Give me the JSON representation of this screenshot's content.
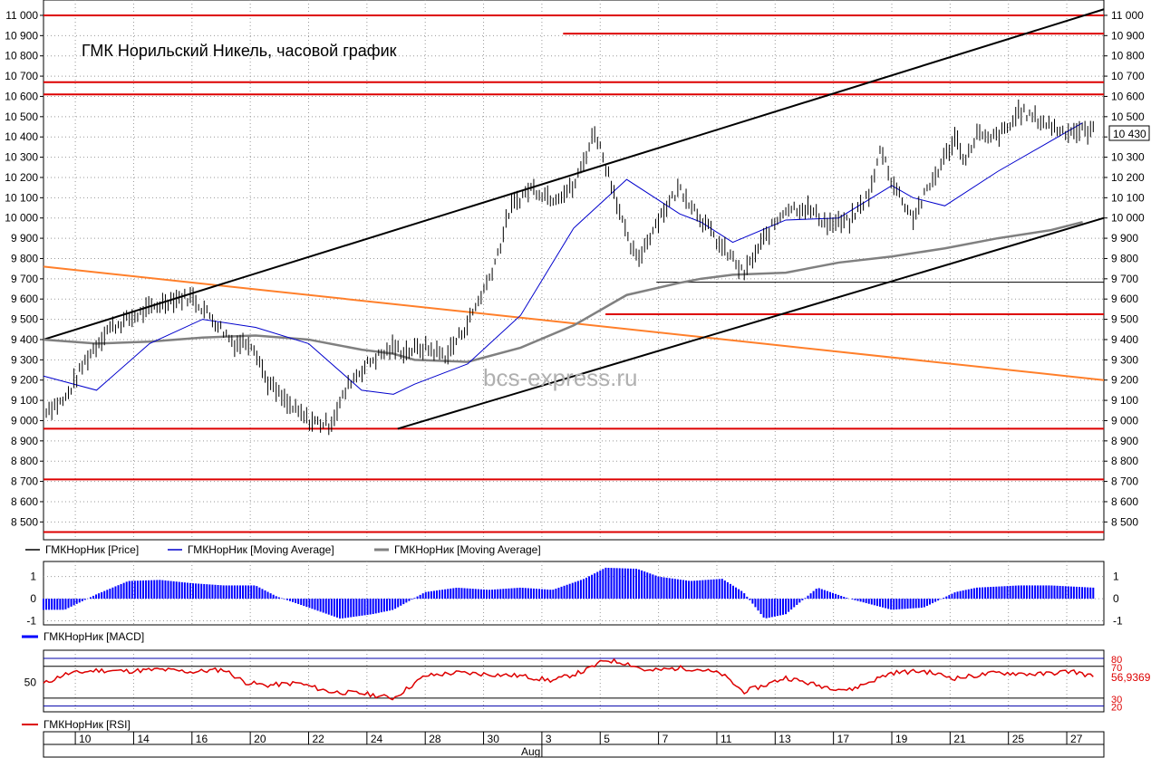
{
  "title": "ГМК Норильский Никель, часовой график",
  "watermark": "bcs-express.ru",
  "colors": {
    "price": "#000000",
    "ma_fast": "#0000cc",
    "ma_slow": "#808080",
    "level": "#dd0000",
    "trend_orange": "#ff7f2a",
    "macd": "#0000ff",
    "rsi": "#dd0000"
  },
  "price_panel": {
    "ylim": [
      8430,
      11040
    ],
    "y_ticks": [
      8500,
      8600,
      8700,
      8800,
      8900,
      9000,
      9100,
      9200,
      9300,
      9400,
      9500,
      9600,
      9700,
      9800,
      9900,
      10000,
      10100,
      10200,
      10300,
      10400,
      10500,
      10600,
      10700,
      10800,
      10900,
      11000
    ],
    "y_tick_labels": [
      "8 500",
      "8 600",
      "8 700",
      "8 800",
      "8 900",
      "9 000",
      "9 100",
      "9 200",
      "9 300",
      "9 400",
      "9 500",
      "9 600",
      "9 700",
      "9 800",
      "9 900",
      "10 000",
      "10 100",
      "10 200",
      "10 300",
      "10 400",
      "10 500",
      "10 600",
      "10 700",
      "10 800",
      "10 900",
      "11 000"
    ],
    "last_price_label": "10 430",
    "levels": [
      {
        "y": 11000,
        "from": 0.0,
        "to": 1.0
      },
      {
        "y": 10910,
        "from": 0.49,
        "to": 1.0
      },
      {
        "y": 10670,
        "from": 0.0,
        "to": 1.0
      },
      {
        "y": 10610,
        "from": 0.0,
        "to": 1.0
      },
      {
        "y": 9525,
        "from": 0.53,
        "to": 1.0
      },
      {
        "y": 8960,
        "from": 0.0,
        "to": 1.0
      },
      {
        "y": 8710,
        "from": 0.0,
        "to": 1.0
      },
      {
        "y": 8450,
        "from": 0.0,
        "to": 1.0
      }
    ],
    "support_line": {
      "y": 9683,
      "from": 0.578,
      "to": 1.0
    },
    "channel_upper": {
      "x": [
        0,
        1
      ],
      "y": [
        9400,
        11030
      ]
    },
    "channel_lower": {
      "x": [
        0.334,
        1
      ],
      "y": [
        8960,
        10000
      ]
    },
    "trend_orange": {
      "x": [
        0,
        1
      ],
      "y": [
        9760,
        9200
      ]
    },
    "price_path": {
      "x": [
        0,
        0.02,
        0.04,
        0.06,
        0.08,
        0.1,
        0.12,
        0.14,
        0.16,
        0.18,
        0.195,
        0.2,
        0.21,
        0.23,
        0.25,
        0.27,
        0.29,
        0.31,
        0.33,
        0.34,
        0.36,
        0.38,
        0.4,
        0.42,
        0.43,
        0.44,
        0.46,
        0.48,
        0.5,
        0.52,
        0.54,
        0.55,
        0.56,
        0.58,
        0.6,
        0.62,
        0.64,
        0.65,
        0.66,
        0.68,
        0.7,
        0.72,
        0.74,
        0.76,
        0.78,
        0.79,
        0.8,
        0.82,
        0.84,
        0.86,
        0.87,
        0.88,
        0.89,
        0.9,
        0.91,
        0.92,
        0.94,
        0.96,
        0.98,
        0.99
      ],
      "y": [
        9050,
        9100,
        9300,
        9450,
        9500,
        9550,
        9600,
        9610,
        9500,
        9380,
        9390,
        9350,
        9200,
        9080,
        9000,
        8980,
        9200,
        9300,
        9360,
        9340,
        9360,
        9320,
        9480,
        9700,
        9850,
        10050,
        10150,
        10100,
        10150,
        10430,
        10100,
        9900,
        9790,
        10000,
        10150,
        10000,
        9850,
        9800,
        9720,
        9900,
        10050,
        10050,
        9970,
        9980,
        10130,
        10350,
        10180,
        10000,
        10200,
        10400,
        10280,
        10420,
        10380,
        10410,
        10440,
        10530,
        10480,
        10430,
        10430,
        10430
      ]
    },
    "ma_fast_path": {
      "x": [
        0,
        0.05,
        0.1,
        0.15,
        0.2,
        0.25,
        0.3,
        0.33,
        0.35,
        0.4,
        0.45,
        0.5,
        0.55,
        0.6,
        0.62,
        0.65,
        0.7,
        0.75,
        0.8,
        0.82,
        0.85,
        0.9,
        0.95,
        0.98
      ],
      "y": [
        9220,
        9150,
        9380,
        9500,
        9460,
        9380,
        9150,
        9130,
        9180,
        9280,
        9520,
        9950,
        10190,
        10020,
        9980,
        9880,
        9990,
        10000,
        10160,
        10100,
        10060,
        10230,
        10380,
        10470
      ]
    },
    "ma_slow_path": {
      "x": [
        0,
        0.05,
        0.1,
        0.15,
        0.2,
        0.25,
        0.3,
        0.33,
        0.35,
        0.4,
        0.45,
        0.5,
        0.55,
        0.6,
        0.62,
        0.65,
        0.7,
        0.75,
        0.8,
        0.85,
        0.9,
        0.95,
        0.98
      ],
      "y": [
        9400,
        9380,
        9390,
        9410,
        9420,
        9400,
        9350,
        9330,
        9300,
        9290,
        9360,
        9470,
        9620,
        9680,
        9700,
        9720,
        9730,
        9780,
        9810,
        9850,
        9900,
        9940,
        9980
      ]
    }
  },
  "legend": [
    {
      "label": "ГМКНорНик [Price]",
      "color": "#000000"
    },
    {
      "label": "ГМКНорНик [Moving Average]",
      "color": "#0000cc"
    },
    {
      "label": "ГМКНорНик [Moving Average]",
      "color": "#808080"
    }
  ],
  "macd_panel": {
    "ylim": [
      -1.1,
      1.6
    ],
    "y_ticks": [
      -1,
      0,
      1
    ],
    "y_tick_labels": [
      "-1",
      "0",
      "1"
    ],
    "legend": "ГМКНорНик [MACD]",
    "path": {
      "x": [
        0,
        0.02,
        0.05,
        0.08,
        0.11,
        0.14,
        0.17,
        0.2,
        0.22,
        0.25,
        0.28,
        0.31,
        0.33,
        0.36,
        0.39,
        0.42,
        0.45,
        0.48,
        0.51,
        0.53,
        0.56,
        0.58,
        0.61,
        0.64,
        0.66,
        0.68,
        0.7,
        0.73,
        0.76,
        0.8,
        0.83,
        0.86,
        0.88,
        0.92,
        0.95,
        0.99
      ],
      "y": [
        -0.5,
        -0.5,
        0.2,
        0.8,
        0.85,
        0.7,
        0.6,
        0.6,
        0.1,
        -0.4,
        -0.9,
        -0.7,
        -0.5,
        0.3,
        0.5,
        0.4,
        0.5,
        0.4,
        0.9,
        1.4,
        1.35,
        1.0,
        0.8,
        0.9,
        0.3,
        -0.9,
        -0.7,
        0.5,
        0.0,
        -0.5,
        -0.4,
        0.3,
        0.5,
        0.6,
        0.6,
        0.5
      ]
    }
  },
  "rsi_panel": {
    "ylim": [
      15,
      88
    ],
    "y_ticks": [
      50
    ],
    "y_tick_labels": [
      "50"
    ],
    "levels": [
      {
        "y": 80,
        "label": "80"
      },
      {
        "y": 70,
        "label": "70"
      },
      {
        "y": 30,
        "label": "30"
      },
      {
        "y": 20,
        "label": "20"
      }
    ],
    "last_value_label": "56,9369",
    "legend": "ГМКНорНик [RSI]",
    "path": {
      "x": [
        0,
        0.02,
        0.05,
        0.08,
        0.11,
        0.14,
        0.17,
        0.19,
        0.21,
        0.24,
        0.27,
        0.3,
        0.33,
        0.36,
        0.39,
        0.42,
        0.45,
        0.48,
        0.51,
        0.53,
        0.55,
        0.57,
        0.6,
        0.62,
        0.64,
        0.66,
        0.68,
        0.7,
        0.73,
        0.76,
        0.8,
        0.83,
        0.86,
        0.9,
        0.94,
        0.97,
        0.99
      ],
      "y": [
        48,
        60,
        65,
        64,
        66,
        63,
        66,
        50,
        46,
        49,
        38,
        36,
        30,
        58,
        62,
        60,
        58,
        52,
        64,
        78,
        74,
        64,
        68,
        66,
        60,
        38,
        46,
        56,
        46,
        40,
        62,
        64,
        55,
        62,
        60,
        64,
        57
      ]
    }
  },
  "x_axis": {
    "ticks": [
      {
        "pos": 0.03,
        "label": "10"
      },
      {
        "pos": 0.085,
        "label": "14"
      },
      {
        "pos": 0.14,
        "label": "16"
      },
      {
        "pos": 0.195,
        "label": "20"
      },
      {
        "pos": 0.25,
        "label": "22"
      },
      {
        "pos": 0.305,
        "label": "24"
      },
      {
        "pos": 0.36,
        "label": "28"
      },
      {
        "pos": 0.415,
        "label": "30"
      },
      {
        "pos": 0.47,
        "label": "3"
      },
      {
        "pos": 0.525,
        "label": "5"
      },
      {
        "pos": 0.58,
        "label": "7"
      },
      {
        "pos": 0.635,
        "label": "11"
      },
      {
        "pos": 0.69,
        "label": "13"
      },
      {
        "pos": 0.745,
        "label": "17"
      },
      {
        "pos": 0.8,
        "label": "19"
      },
      {
        "pos": 0.855,
        "label": "21"
      },
      {
        "pos": 0.91,
        "label": "25"
      },
      {
        "pos": 0.965,
        "label": "27"
      }
    ],
    "month_label": "Aug",
    "month_pos": 0.47
  }
}
